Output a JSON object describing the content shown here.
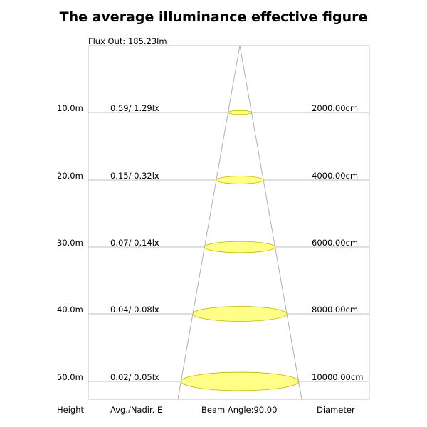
{
  "title": "The average illuminance effective figure",
  "flux_out": "Flux Out: 185.23lm",
  "columns": {
    "height": "Height",
    "illuminance": "Avg./Nadir. E",
    "beam_angle": "Beam Angle:90.00",
    "diameter": "Diameter"
  },
  "rows": [
    {
      "height": "10.0m",
      "illuminance": "0.59/ 1.29lx",
      "diameter": "2000.00cm"
    },
    {
      "height": "20.0m",
      "illuminance": "0.15/ 0.32lx",
      "diameter": "4000.00cm"
    },
    {
      "height": "30.0m",
      "illuminance": "0.07/ 0.14lx",
      "diameter": "6000.00cm"
    },
    {
      "height": "40.0m",
      "illuminance": "0.04/ 0.08lx",
      "diameter": "8000.00cm"
    },
    {
      "height": "50.0m",
      "illuminance": "0.02/ 0.05lx",
      "diameter": "10000.00cm"
    }
  ],
  "colors": {
    "ellipse_fill": "#ffff88",
    "ellipse_stroke": "#c8b400",
    "grid": "#c0c0c0",
    "cone": "#b0b0b0"
  }
}
